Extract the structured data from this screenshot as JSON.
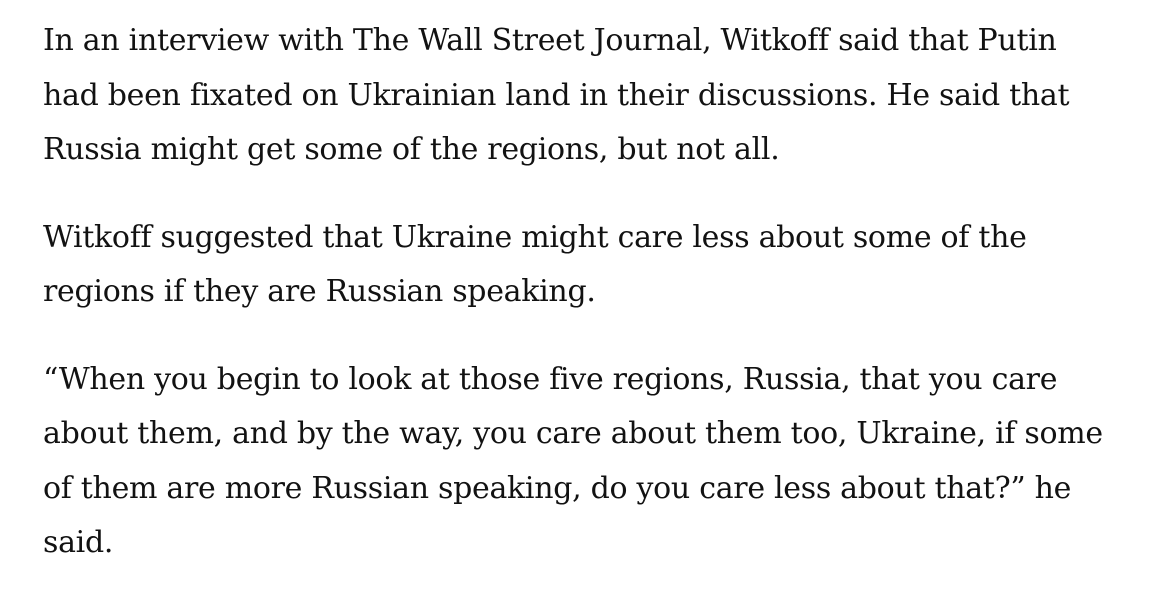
{
  "article": {
    "paragraphs": [
      {
        "lines": [
          "In an interview with The Wall Street Journal, Witkoff said that Putin",
          "had been fixated on Ukrainian land in their discussions. He said that",
          "Russia might get some of the regions, but not all."
        ]
      },
      {
        "lines": [
          "Witkoff suggested that Ukraine might care less about some of the",
          "regions if they are Russian speaking."
        ]
      },
      {
        "lines": [
          "“When you begin to look at those five regions, Russia, that you care",
          "about them, and by the way, you care about them too, Ukraine, if some",
          "of them are more Russian speaking, do you care less about that?” he",
          "said."
        ]
      }
    ],
    "text_color": "#121212",
    "background_color": "#ffffff"
  }
}
